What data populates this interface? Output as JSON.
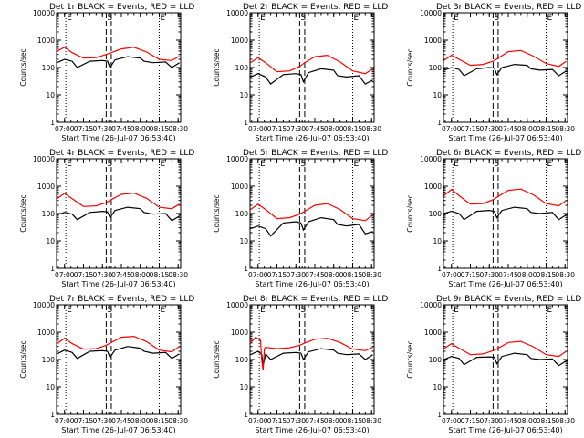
{
  "xlabel": "Start Time (26-Jul-07 06:53:40)",
  "ylabel": "Counts/sec",
  "x_tick_labels": [
    "07:00",
    "07:15",
    "07:30",
    "07:45",
    "08:00",
    "08:15",
    "08:30"
  ],
  "y_tick_labels": [
    "1",
    "10",
    "100",
    "1000",
    "10000"
  ],
  "colors": {
    "events": "#000000",
    "lld": "#ff0000"
  },
  "chart_data": [
    {
      "type": "line",
      "title": "Det 1r BLACK = Events, RED = LLD",
      "markers": [
        "E",
        "S",
        "E"
      ],
      "ylim": [
        1,
        12000
      ],
      "xlim": [
        "06:53:40",
        "08:32:00"
      ],
      "x_major_ticks": [
        "07:00",
        "07:15",
        "07:30",
        "07:45",
        "08:00",
        "08:15",
        "08:30"
      ],
      "dotted_lines": [
        "07:01",
        "08:15"
      ],
      "dashed_lines": [
        "07:33",
        "07:37"
      ],
      "series": [
        {
          "name": "Events",
          "x": [
            "06:54",
            "07:00",
            "07:06",
            "07:10",
            "07:20",
            "07:30",
            "07:34",
            "07:36",
            "07:40",
            "07:50",
            "08:00",
            "08:03",
            "08:10",
            "08:20",
            "08:25",
            "08:31"
          ],
          "values": [
            150,
            200,
            170,
            100,
            170,
            180,
            170,
            100,
            190,
            250,
            220,
            170,
            150,
            160,
            100,
            150
          ]
        },
        {
          "name": "LLD",
          "x": [
            "06:54",
            "07:00",
            "07:06",
            "07:15",
            "07:25",
            "07:33",
            "07:37",
            "07:45",
            "07:55",
            "08:05",
            "08:15",
            "08:25",
            "08:31"
          ],
          "values": [
            400,
            550,
            350,
            220,
            230,
            300,
            350,
            480,
            550,
            370,
            200,
            180,
            260
          ]
        }
      ]
    },
    {
      "type": "line",
      "title": "Det 2r BLACK = Events, RED = LLD",
      "markers": [
        "E",
        "S",
        "E"
      ],
      "ylim": [
        1,
        12000
      ],
      "xlim": [
        "06:53:40",
        "08:32:00"
      ],
      "x_major_ticks": [
        "07:00",
        "07:15",
        "07:30",
        "07:45",
        "08:00",
        "08:15",
        "08:30"
      ],
      "dotted_lines": [
        "07:01",
        "08:15"
      ],
      "dashed_lines": [
        "07:33",
        "07:37"
      ],
      "series": [
        {
          "name": "Events",
          "x": [
            "06:54",
            "07:00",
            "07:06",
            "07:10",
            "07:20",
            "07:30",
            "07:34",
            "07:36",
            "07:40",
            "07:50",
            "08:00",
            "08:03",
            "08:10",
            "08:20",
            "08:25",
            "08:31"
          ],
          "values": [
            45,
            60,
            45,
            25,
            55,
            60,
            55,
            30,
            65,
            90,
            80,
            50,
            45,
            50,
            25,
            35
          ]
        },
        {
          "name": "LLD",
          "x": [
            "06:54",
            "07:00",
            "07:06",
            "07:15",
            "07:25",
            "07:33",
            "07:37",
            "07:45",
            "07:55",
            "08:05",
            "08:15",
            "08:25",
            "08:31"
          ],
          "values": [
            150,
            230,
            150,
            70,
            75,
            110,
            150,
            250,
            280,
            160,
            75,
            60,
            90
          ]
        }
      ]
    },
    {
      "type": "line",
      "title": "Det 3r BLACK = Events, RED = LLD",
      "markers": [
        "E",
        "S",
        "E"
      ],
      "ylim": [
        1,
        12000
      ],
      "xlim": [
        "06:53:40",
        "08:32:00"
      ],
      "x_major_ticks": [
        "07:00",
        "07:15",
        "07:30",
        "07:45",
        "08:00",
        "08:15",
        "08:30"
      ],
      "dotted_lines": [
        "07:01",
        "08:15"
      ],
      "dashed_lines": [
        "07:33",
        "07:37"
      ],
      "series": [
        {
          "name": "Events",
          "x": [
            "06:54",
            "07:00",
            "07:06",
            "07:10",
            "07:20",
            "07:30",
            "07:34",
            "07:36",
            "07:40",
            "07:50",
            "08:00",
            "08:03",
            "08:10",
            "08:20",
            "08:25",
            "08:31"
          ],
          "values": [
            80,
            100,
            85,
            50,
            90,
            100,
            95,
            55,
            100,
            130,
            120,
            90,
            80,
            85,
            50,
            75
          ]
        },
        {
          "name": "LLD",
          "x": [
            "06:54",
            "07:00",
            "07:06",
            "07:15",
            "07:25",
            "07:33",
            "07:37",
            "07:45",
            "07:55",
            "08:05",
            "08:15",
            "08:25",
            "08:31"
          ],
          "values": [
            180,
            280,
            200,
            120,
            130,
            170,
            220,
            380,
            420,
            260,
            140,
            110,
            170
          ]
        }
      ]
    },
    {
      "type": "line",
      "title": "Det 4r BLACK = Events, RED = LLD",
      "markers": [
        "E",
        "S",
        "E"
      ],
      "ylim": [
        1,
        12000
      ],
      "xlim": [
        "06:53:40",
        "08:32:00"
      ],
      "x_major_ticks": [
        "07:00",
        "07:15",
        "07:30",
        "07:45",
        "08:00",
        "08:15",
        "08:30"
      ],
      "dotted_lines": [
        "07:01",
        "08:15"
      ],
      "dashed_lines": [
        "07:33",
        "07:37"
      ],
      "series": [
        {
          "name": "Events",
          "x": [
            "06:54",
            "07:00",
            "07:06",
            "07:10",
            "07:20",
            "07:30",
            "07:34",
            "07:36",
            "07:40",
            "07:50",
            "08:00",
            "08:03",
            "08:10",
            "08:20",
            "08:25",
            "08:31"
          ],
          "values": [
            90,
            110,
            95,
            60,
            110,
            120,
            115,
            70,
            130,
            170,
            150,
            110,
            95,
            100,
            55,
            80
          ]
        },
        {
          "name": "LLD",
          "x": [
            "06:54",
            "07:00",
            "07:06",
            "07:15",
            "07:25",
            "07:33",
            "07:37",
            "07:45",
            "07:55",
            "08:05",
            "08:15",
            "08:25",
            "08:31"
          ],
          "values": [
            350,
            550,
            350,
            180,
            190,
            250,
            320,
            500,
            560,
            360,
            170,
            150,
            220
          ]
        }
      ]
    },
    {
      "type": "line",
      "title": "Det 5r BLACK = Events, RED = LLD",
      "markers": [
        "E",
        "S",
        "E"
      ],
      "ylim": [
        1,
        12000
      ],
      "xlim": [
        "06:53:40",
        "08:32:00"
      ],
      "x_major_ticks": [
        "07:00",
        "07:15",
        "07:30",
        "07:45",
        "08:00",
        "08:15",
        "08:30"
      ],
      "dotted_lines": [
        "07:01",
        "08:15"
      ],
      "dashed_lines": [
        "07:33",
        "07:37"
      ],
      "series": [
        {
          "name": "Events",
          "x": [
            "06:54",
            "07:00",
            "07:06",
            "07:10",
            "07:20",
            "07:30",
            "07:34",
            "07:36",
            "07:40",
            "07:50",
            "08:00",
            "08:03",
            "08:10",
            "08:20",
            "08:25",
            "08:31"
          ],
          "values": [
            28,
            35,
            28,
            15,
            45,
            50,
            45,
            25,
            50,
            70,
            60,
            40,
            35,
            40,
            18,
            22
          ]
        },
        {
          "name": "LLD",
          "x": [
            "06:54",
            "07:00",
            "07:06",
            "07:15",
            "07:25",
            "07:33",
            "07:37",
            "07:45",
            "07:55",
            "08:05",
            "08:15",
            "08:25",
            "08:31"
          ],
          "values": [
            140,
            220,
            140,
            65,
            70,
            95,
            120,
            200,
            230,
            140,
            65,
            55,
            90
          ]
        }
      ]
    },
    {
      "type": "line",
      "title": "Det 6r BLACK = Events, RED = LLD",
      "markers": [
        "E",
        "S",
        "E"
      ],
      "ylim": [
        1,
        12000
      ],
      "xlim": [
        "06:53:40",
        "08:32:00"
      ],
      "x_major_ticks": [
        "07:00",
        "07:15",
        "07:30",
        "07:45",
        "08:00",
        "08:15",
        "08:30"
      ],
      "dotted_lines": [
        "07:01",
        "08:15"
      ],
      "dashed_lines": [
        "07:33",
        "07:37"
      ],
      "series": [
        {
          "name": "Events",
          "x": [
            "06:54",
            "07:00",
            "07:06",
            "07:10",
            "07:20",
            "07:30",
            "07:34",
            "07:36",
            "07:40",
            "07:50",
            "08:00",
            "08:03",
            "08:10",
            "08:20",
            "08:25",
            "08:31"
          ],
          "values": [
            100,
            120,
            100,
            60,
            120,
            130,
            120,
            70,
            130,
            170,
            150,
            110,
            100,
            110,
            60,
            90
          ]
        },
        {
          "name": "LLD",
          "x": [
            "06:54",
            "07:00",
            "07:06",
            "07:15",
            "07:25",
            "07:33",
            "07:37",
            "07:45",
            "07:55",
            "08:05",
            "08:15",
            "08:25",
            "08:31"
          ],
          "values": [
            450,
            750,
            450,
            220,
            230,
            320,
            420,
            700,
            780,
            480,
            230,
            190,
            300
          ]
        }
      ]
    },
    {
      "type": "line",
      "title": "Det 7r BLACK = Events, RED = LLD",
      "markers": [
        "E",
        "S",
        "E"
      ],
      "ylim": [
        1,
        12000
      ],
      "xlim": [
        "06:53:40",
        "08:32:00"
      ],
      "x_major_ticks": [
        "07:00",
        "07:15",
        "07:30",
        "07:45",
        "08:00",
        "08:15",
        "08:30"
      ],
      "dotted_lines": [
        "07:01",
        "08:15"
      ],
      "dashed_lines": [
        "07:33",
        "07:37"
      ],
      "series": [
        {
          "name": "Events",
          "x": [
            "06:54",
            "07:00",
            "07:06",
            "07:10",
            "07:20",
            "07:30",
            "07:34",
            "07:36",
            "07:40",
            "07:50",
            "08:00",
            "08:03",
            "08:10",
            "08:20",
            "08:25",
            "08:31"
          ],
          "values": [
            160,
            220,
            180,
            110,
            200,
            210,
            200,
            120,
            220,
            300,
            260,
            200,
            170,
            180,
            110,
            160
          ]
        },
        {
          "name": "LLD",
          "x": [
            "06:54",
            "07:00",
            "07:06",
            "07:15",
            "07:25",
            "07:33",
            "07:37",
            "07:45",
            "07:55",
            "08:05",
            "08:15",
            "08:25",
            "08:31"
          ],
          "values": [
            380,
            600,
            380,
            240,
            250,
            330,
            420,
            650,
            700,
            450,
            220,
            190,
            300
          ]
        }
      ]
    },
    {
      "type": "line",
      "title": "Det 8r BLACK = Events, RED = LLD",
      "markers": [
        "E",
        "S",
        "E"
      ],
      "ylim": [
        1,
        12000
      ],
      "xlim": [
        "06:53:40",
        "08:32:00"
      ],
      "x_major_ticks": [
        "07:00",
        "07:15",
        "07:30",
        "07:45",
        "08:00",
        "08:15",
        "08:30"
      ],
      "dotted_lines": [
        "07:01",
        "08:15"
      ],
      "dashed_lines": [
        "07:33",
        "07:37"
      ],
      "series": [
        {
          "name": "Events",
          "x": [
            "06:54",
            "07:00",
            "07:03",
            "07:04",
            "07:06",
            "07:10",
            "07:20",
            "07:30",
            "07:34",
            "07:36",
            "07:40",
            "07:50",
            "08:00",
            "08:03",
            "08:10",
            "08:20",
            "08:25",
            "08:31"
          ],
          "values": [
            150,
            200,
            150,
            60,
            160,
            100,
            170,
            180,
            170,
            100,
            190,
            250,
            220,
            170,
            150,
            160,
            100,
            150
          ]
        },
        {
          "name": "LLD",
          "x": [
            "06:54",
            "06:58",
            "07:02",
            "07:03",
            "07:04",
            "07:05",
            "07:06",
            "07:15",
            "07:25",
            "07:33",
            "07:37",
            "07:45",
            "07:55",
            "08:05",
            "08:15",
            "08:25",
            "08:31"
          ],
          "values": [
            400,
            650,
            500,
            90,
            40,
            250,
            280,
            250,
            270,
            330,
            400,
            550,
            600,
            420,
            240,
            210,
            280
          ]
        }
      ]
    },
    {
      "type": "line",
      "title": "Det 9r BLACK = Events, RED = LLD",
      "markers": [
        "E",
        "S",
        "E"
      ],
      "ylim": [
        1,
        12000
      ],
      "xlim": [
        "06:53:40",
        "08:32:00"
      ],
      "x_major_ticks": [
        "07:00",
        "07:15",
        "07:30",
        "07:45",
        "08:00",
        "08:15",
        "08:30"
      ],
      "dotted_lines": [
        "07:01",
        "08:15"
      ],
      "dashed_lines": [
        "07:33",
        "07:37"
      ],
      "series": [
        {
          "name": "Events",
          "x": [
            "06:54",
            "07:00",
            "07:06",
            "07:10",
            "07:20",
            "07:30",
            "07:34",
            "07:36",
            "07:40",
            "07:50",
            "08:00",
            "08:03",
            "08:10",
            "08:20",
            "08:25",
            "08:31"
          ],
          "values": [
            100,
            130,
            110,
            65,
            120,
            125,
            120,
            70,
            130,
            170,
            150,
            110,
            100,
            105,
            60,
            90
          ]
        },
        {
          "name": "LLD",
          "x": [
            "06:54",
            "07:00",
            "07:06",
            "07:15",
            "07:25",
            "07:33",
            "07:37",
            "07:45",
            "07:55",
            "08:05",
            "08:15",
            "08:25",
            "08:31"
          ],
          "values": [
            250,
            380,
            260,
            150,
            160,
            210,
            260,
            420,
            460,
            290,
            150,
            130,
            200
          ]
        }
      ]
    }
  ]
}
